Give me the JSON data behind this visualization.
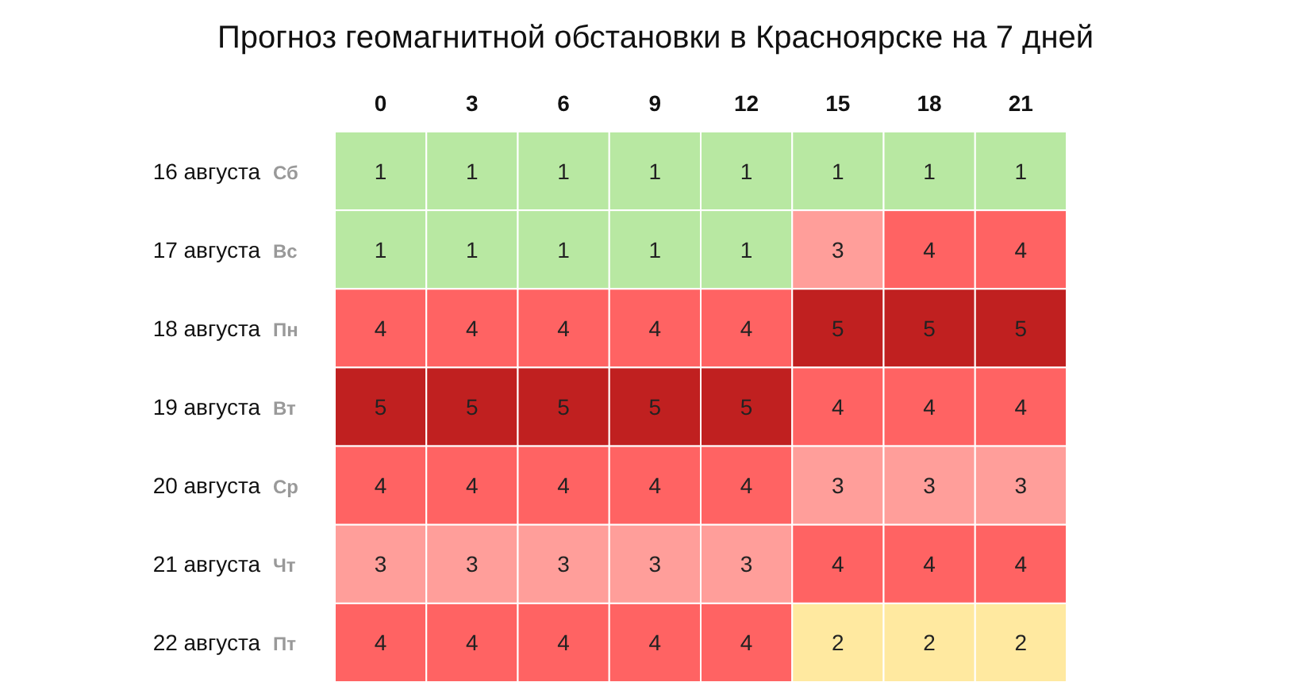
{
  "chart_data": {
    "type": "heatmap",
    "title": "Прогноз геомагнитной обстановки в Красноярске на 7 дней",
    "categories": [
      "0",
      "3",
      "6",
      "9",
      "12",
      "15",
      "18",
      "21"
    ],
    "y_categories": [
      "16 августа",
      "17 августа",
      "18 августа",
      "19 августа",
      "20 августа",
      "21 августа",
      "22 августа"
    ],
    "y2_categories": [
      "Сб",
      "Вс",
      "Пн",
      "Вт",
      "Ср",
      "Чт",
      "Пт"
    ],
    "cells": [
      [
        1,
        1,
        1,
        1,
        1,
        1,
        1,
        1
      ],
      [
        1,
        1,
        1,
        1,
        1,
        3,
        4,
        4
      ],
      [
        4,
        4,
        4,
        4,
        4,
        5,
        5,
        5
      ],
      [
        5,
        5,
        5,
        5,
        5,
        4,
        4,
        4
      ],
      [
        4,
        4,
        4,
        4,
        4,
        3,
        3,
        3
      ],
      [
        3,
        3,
        3,
        3,
        3,
        4,
        4,
        4
      ],
      [
        4,
        4,
        4,
        4,
        4,
        2,
        2,
        2
      ]
    ],
    "colors": [
      "#b8e8a2",
      "#ffe9a0",
      "#ff9e9a",
      "#ff6363",
      "#c02020"
    ],
    "data_labels": true
  }
}
